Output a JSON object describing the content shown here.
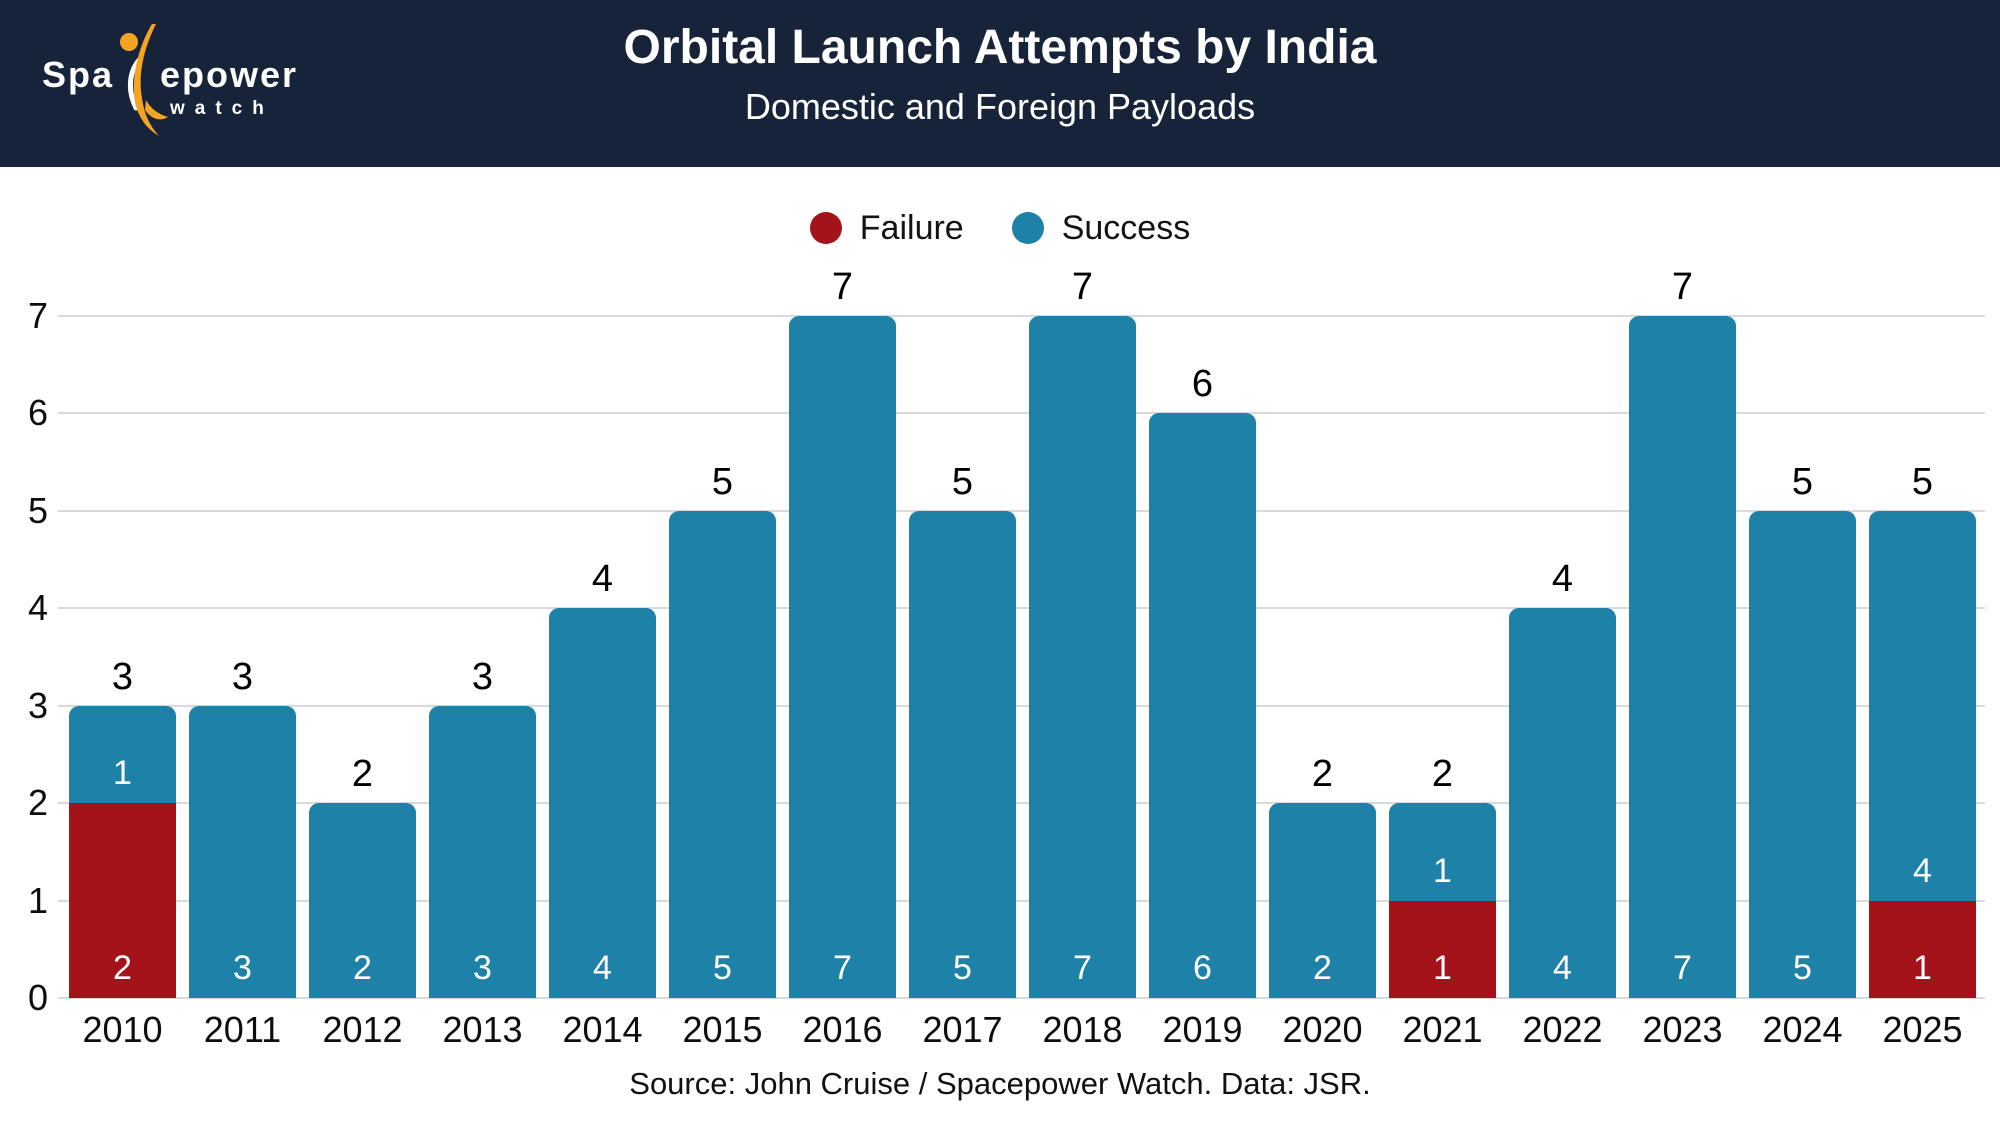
{
  "header": {
    "logo": {
      "part1": "Spa",
      "part2": "epower",
      "line2": "watch"
    },
    "title": "Orbital Launch Attempts by India",
    "subtitle": "Domestic and Foreign Payloads"
  },
  "legend": [
    {
      "label": "Failure",
      "color": "#a41319"
    },
    {
      "label": "Success",
      "color": "#1d81a8"
    }
  ],
  "chart_data": {
    "type": "bar",
    "stacked": true,
    "title": "Orbital Launch Attempts by India",
    "subtitle": "Domestic and Foreign Payloads",
    "categories": [
      "2010",
      "2011",
      "2012",
      "2013",
      "2014",
      "2015",
      "2016",
      "2017",
      "2018",
      "2019",
      "2020",
      "2021",
      "2022",
      "2023",
      "2024",
      "2025"
    ],
    "series": [
      {
        "name": "Failure",
        "color": "#a41319",
        "values": [
          2,
          0,
          0,
          0,
          0,
          0,
          0,
          0,
          0,
          0,
          0,
          1,
          0,
          0,
          0,
          1
        ]
      },
      {
        "name": "Success",
        "color": "#1d81a8",
        "values": [
          1,
          3,
          2,
          3,
          4,
          5,
          7,
          5,
          7,
          6,
          2,
          1,
          4,
          7,
          5,
          4
        ]
      }
    ],
    "totals": [
      3,
      3,
      2,
      3,
      4,
      5,
      7,
      5,
      7,
      6,
      2,
      2,
      4,
      7,
      5,
      5
    ],
    "xlabel": "",
    "ylabel": "",
    "ylim": [
      0,
      7
    ],
    "yticks": [
      0,
      1,
      2,
      3,
      4,
      5,
      6,
      7
    ],
    "grid": true,
    "legend_position": "top",
    "segment_label_color": "#ffffff",
    "total_label_color": "#000000"
  },
  "footer": {
    "source": "Source: John Cruise / Spacepower Watch. Data: JSR."
  },
  "colors": {
    "header_bg": "#172339",
    "accent_orange": "#f4a423",
    "gridline": "#d9d9d9",
    "axis_text": "#0d0d0d"
  }
}
